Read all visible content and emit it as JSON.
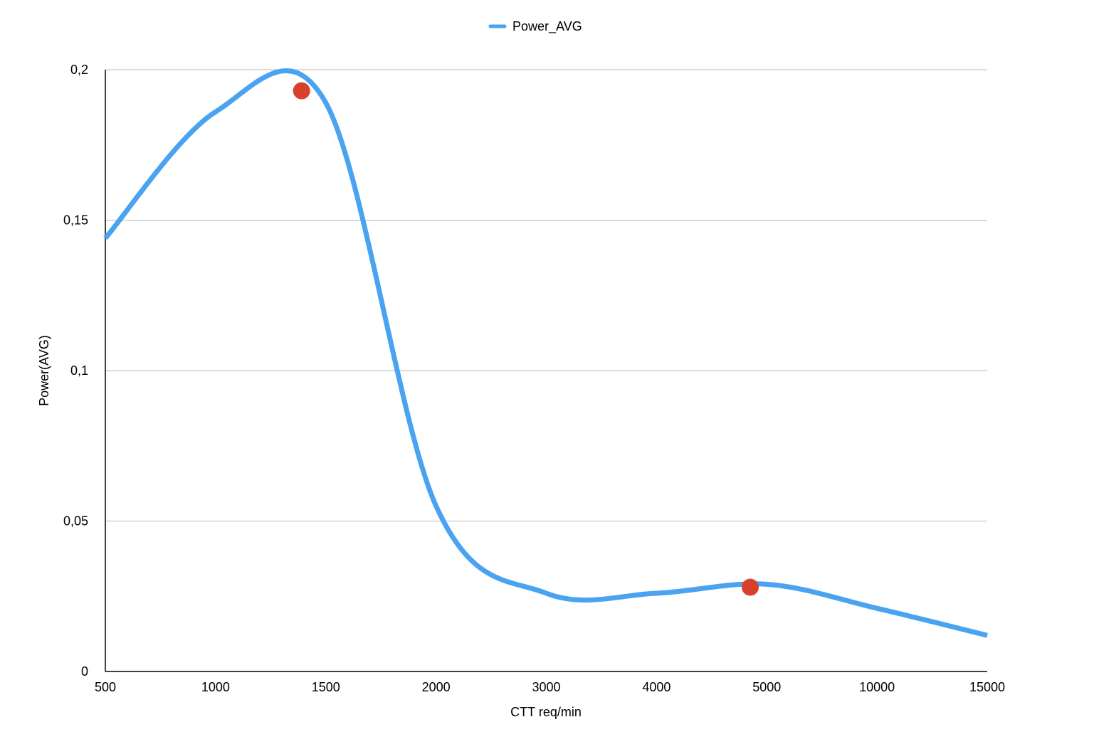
{
  "chart_data": {
    "type": "line",
    "categories": [
      "500",
      "1000",
      "1500",
      "2000",
      "3000",
      "4000",
      "5000",
      "10000",
      "15000"
    ],
    "y_tick_labels": [
      "0",
      "0,05",
      "0,1",
      "0,15",
      "0,2"
    ],
    "ylim": [
      0,
      0.2
    ],
    "grid": true,
    "legend": "top-center",
    "xlabel": "CTT req/min",
    "ylabel": "Power(AVG)",
    "series": [
      {
        "name": "Power_AVG",
        "color": "#4aa3f0",
        "values": [
          0.144,
          0.186,
          0.189,
          0.055,
          0.026,
          0.026,
          0.029,
          0.021,
          0.012
        ]
      }
    ],
    "highlight_points": [
      {
        "category_index": 1.78,
        "value": 0.193,
        "color": "#d9402b"
      },
      {
        "category_index": 5.85,
        "value": 0.028,
        "color": "#d9402b"
      }
    ]
  }
}
